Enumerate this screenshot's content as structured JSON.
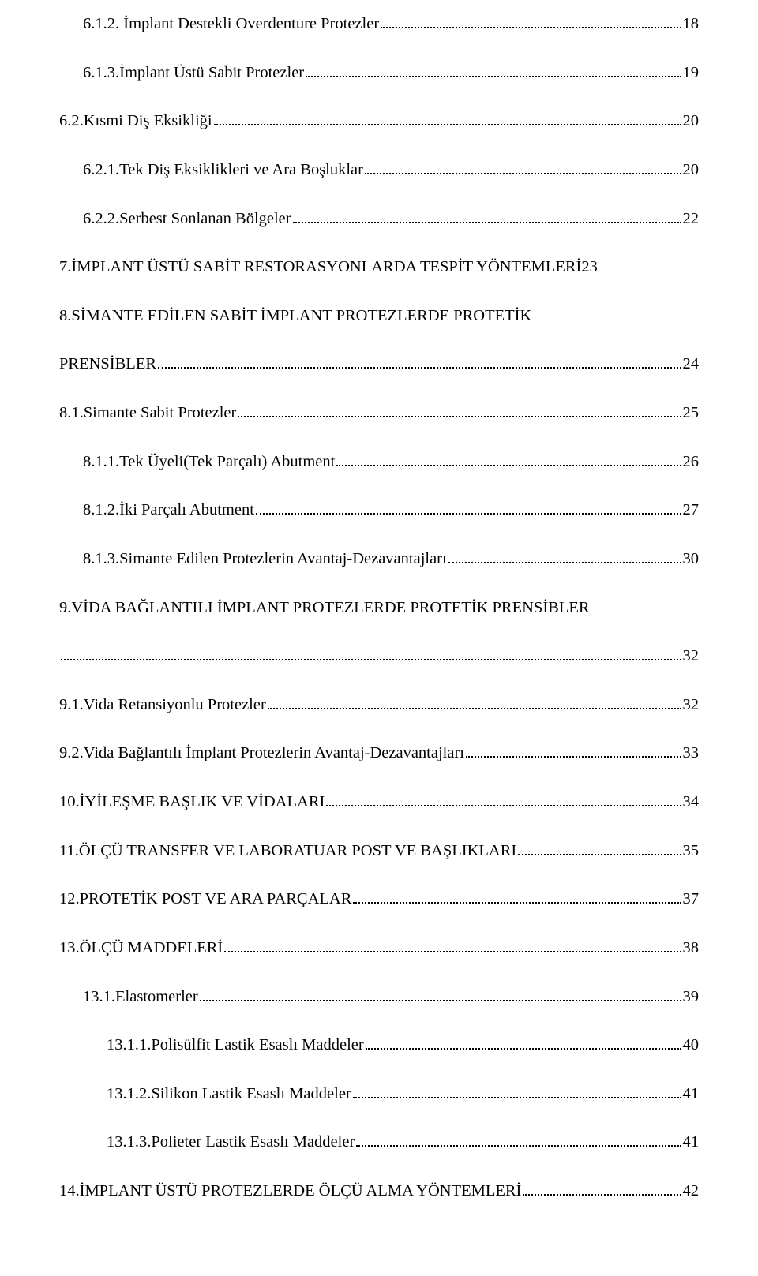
{
  "toc": [
    {
      "indent": 1,
      "label": "6.1.2. İmplant Destekli Overdenture Protezler",
      "page": "18"
    },
    {
      "indent": 1,
      "label": "6.1.3.İmplant Üstü Sabit Protezler",
      "page": "19"
    },
    {
      "indent": 0,
      "label": "6.2.Kısmi Diş Eksikliği",
      "page": "20"
    },
    {
      "indent": 1,
      "label": "6.2.1.Tek Diş Eksiklikleri ve Ara Boşluklar",
      "page": "20"
    },
    {
      "indent": 1,
      "label": "6.2.2.Serbest Sonlanan Bölgeler",
      "page": "22"
    },
    {
      "indent": 0,
      "label": "7.İMPLANT ÜSTÜ SABİT RESTORASYONLARDA TESPİT YÖNTEMLERİ23",
      "page": "",
      "nodots": true
    },
    {
      "indent": 0,
      "twoline": true,
      "top": "8.SİMANTE EDİLEN SABİT İMPLANT PROTEZLERDE PROTETİK",
      "bottom": "PRENSİBLER",
      "page": "24"
    },
    {
      "indent": 0,
      "label": "8.1.Simante Sabit Protezler",
      "page": "25"
    },
    {
      "indent": 1,
      "label": "8.1.1.Tek Üyeli(Tek Parçalı) Abutment",
      "page": "26"
    },
    {
      "indent": 1,
      "label": "8.1.2.İki Parçalı Abutment",
      "page": "27"
    },
    {
      "indent": 1,
      "label": "8.1.3.Simante Edilen Protezlerin Avantaj-Dezavantajları",
      "page": "30"
    },
    {
      "indent": 0,
      "twoline": true,
      "top": "9.VİDA BAĞLANTILI İMPLANT  PROTEZLERDE PROTETİK PRENSİBLER",
      "bottom": "",
      "page": "32"
    },
    {
      "indent": 0,
      "label": "9.1.Vida Retansiyonlu Protezler",
      "page": "32"
    },
    {
      "indent": 0,
      "label": "9.2.Vida Bağlantılı İmplant Protezlerin Avantaj-Dezavantajları",
      "page": "33"
    },
    {
      "indent": 0,
      "label": "10.İYİLEŞME BAŞLIK VE VİDALARI",
      "page": "34"
    },
    {
      "indent": 0,
      "label": "11.ÖLÇÜ TRANSFER VE LABORATUAR POST VE BAŞLIKLARI",
      "page": "35"
    },
    {
      "indent": 0,
      "label": "12.PROTETİK POST VE ARA PARÇALAR",
      "page": "37"
    },
    {
      "indent": 0,
      "label": "13.ÖLÇÜ MADDELERİ",
      "page": "38"
    },
    {
      "indent": 1,
      "label": "13.1.Elastomerler",
      "page": "39"
    },
    {
      "indent": 2,
      "label": "13.1.1.Polisülfit Lastik Esaslı Maddeler",
      "page": "40"
    },
    {
      "indent": 2,
      "label": "13.1.2.Silikon Lastik Esaslı Maddeler",
      "page": "41"
    },
    {
      "indent": 2,
      "label": "13.1.3.Polieter Lastik Esaslı Maddeler",
      "page": "41"
    },
    {
      "indent": 0,
      "label": "14.İMPLANT ÜSTÜ PROTEZLERDE ÖLÇÜ ALMA YÖNTEMLERİ",
      "page": "42"
    }
  ]
}
